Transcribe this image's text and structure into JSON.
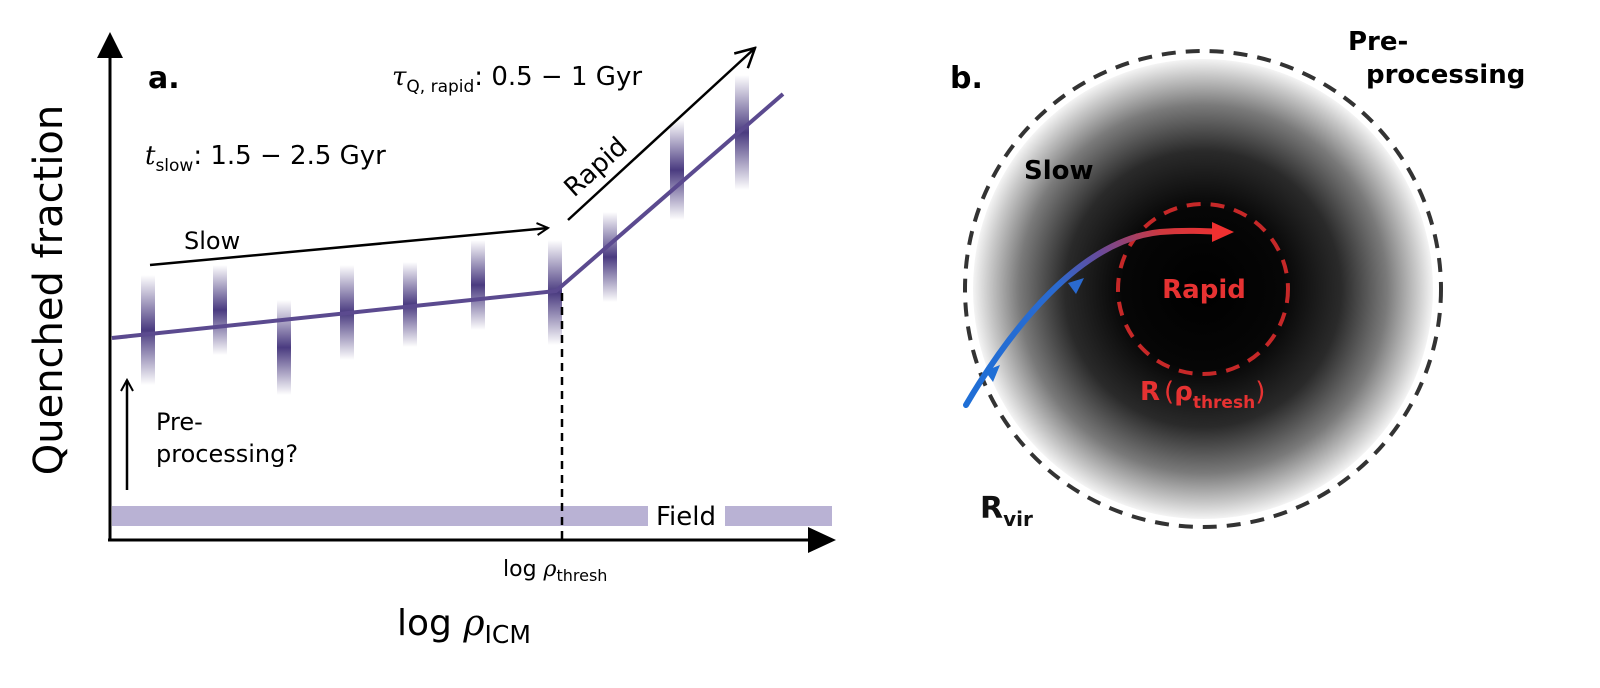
{
  "panel_a": {
    "label": "a.",
    "ylabel": "Quenched fraction",
    "xlabel_main": "log ",
    "xlabel_rho": "ρ",
    "xlabel_sub": "ICM",
    "threshold_main": "log ",
    "threshold_rho": "ρ",
    "threshold_sub": "thresh",
    "tau_symbol": "τ",
    "tau_sub": "Q, rapid",
    "tau_value": ": 0.5 − 1 Gyr",
    "t_symbol": "t",
    "t_sub": "slow",
    "t_value": ": 1.5 − 2.5 Gyr",
    "slow_label": "Slow",
    "rapid_label": "Rapid",
    "preproc_line1": "Pre-",
    "preproc_line2": "processing?",
    "field_label": "Field"
  },
  "panel_b": {
    "label": "b.",
    "preproc_line1": "Pre-",
    "preproc_line2": "processing",
    "slow_label": "Slow",
    "rapid_label": "Rapid",
    "rthresh_main": "R",
    "rthresh_rho": "ρ",
    "rthresh_sub": "thresh",
    "rvir_main": "R",
    "rvir_sub": "vir"
  },
  "colors": {
    "line": "#5b4a8f",
    "field_band": "#b9b2d4",
    "rapid_red": "#e63232",
    "dashed_red": "#c62828",
    "track_blue": "#1f6fd6",
    "halo_dash": "#333333"
  }
}
